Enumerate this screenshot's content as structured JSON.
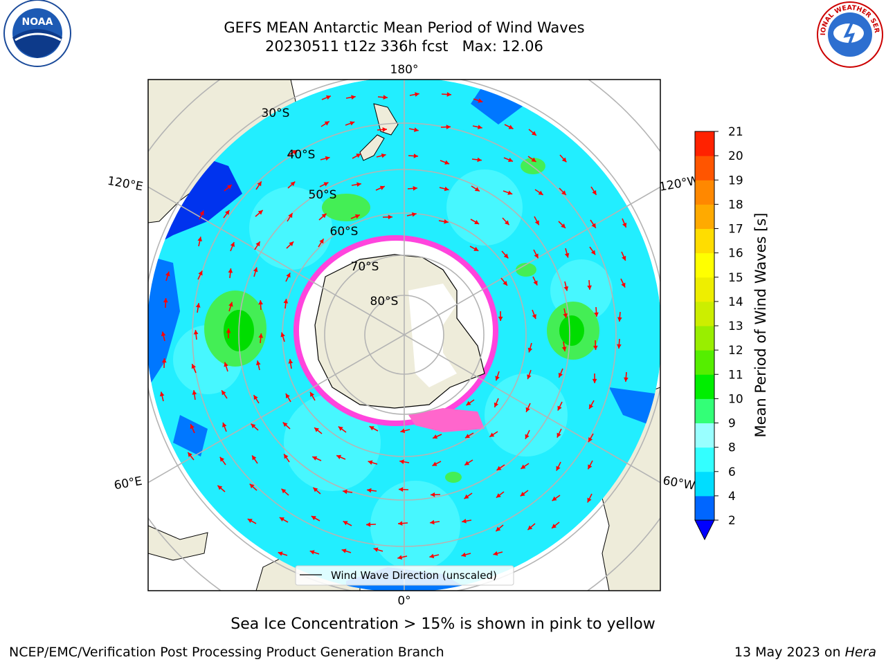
{
  "header": {
    "title_line1": "GEFS MEAN Antarctic Mean Period of Wind Waves",
    "title_line2": "20230511 t12z 336h fcst   Max: 12.06"
  },
  "map": {
    "projection": "south-polar-stereographic",
    "longitude_labels": {
      "top": "180°",
      "bottom": "0°",
      "upper_left": "120°E",
      "upper_right": "120°W",
      "lower_left": "60°E",
      "lower_right": "60°W"
    },
    "latitude_labels": [
      "30°S",
      "40°S",
      "50°S",
      "60°S",
      "70°S",
      "80°S"
    ],
    "legend_label": "Wind Wave Direction (unscaled)",
    "arrow_color": "#ff0000",
    "land_color": "#eeecda",
    "ice_color": "#ff33cc"
  },
  "colorbar": {
    "label": "Mean Period of Wind Waves [s]",
    "ticks": [
      "2",
      "4",
      "6",
      "8",
      "9",
      "10",
      "11",
      "12",
      "13",
      "14",
      "15",
      "16",
      "17",
      "18",
      "19",
      "20",
      "21"
    ],
    "colors": [
      "#0066ff",
      "#00ddff",
      "#33ffff",
      "#99ffff",
      "#33ff77",
      "#00ee00",
      "#55ee00",
      "#99ee00",
      "#ccee00",
      "#eeee00",
      "#ffff00",
      "#ffdd00",
      "#ffaa00",
      "#ff8800",
      "#ff5500",
      "#ff2200"
    ],
    "underflow_color": "#0000ff"
  },
  "footer": {
    "caption": "Sea Ice Concentration > 15% is shown in pink to yellow",
    "credit": "NCEP/EMC/Verification Post Processing Product Generation Branch",
    "date": "13 May 2023 on",
    "host": "Hera"
  },
  "logos": {
    "left": "NOAA",
    "right": "NATIONAL WEATHER SERVICE"
  }
}
